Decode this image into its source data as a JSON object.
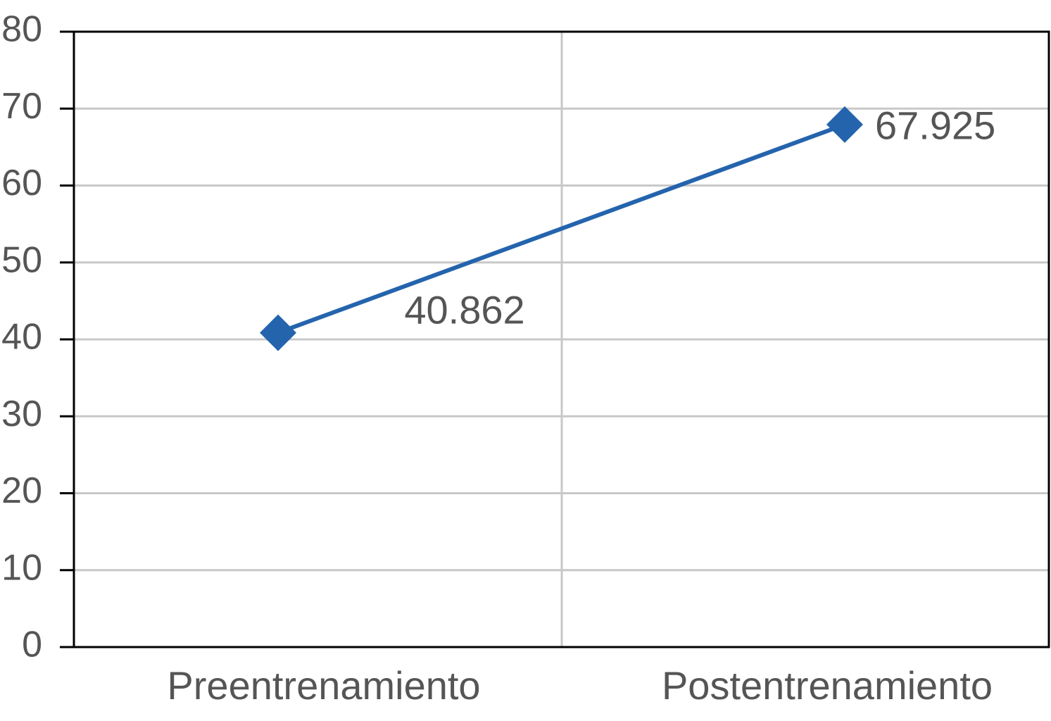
{
  "chart_data": {
    "type": "line",
    "categories": [
      "Preentrenamiento",
      "Postentrenamiento"
    ],
    "series": [
      {
        "color": "#2464ad",
        "values": [
          40.862,
          67.925
        ]
      }
    ],
    "ylim": [
      0,
      80
    ],
    "yticks": [
      0,
      10,
      20,
      30,
      40,
      50,
      60,
      70,
      80
    ],
    "grid": true
  }
}
